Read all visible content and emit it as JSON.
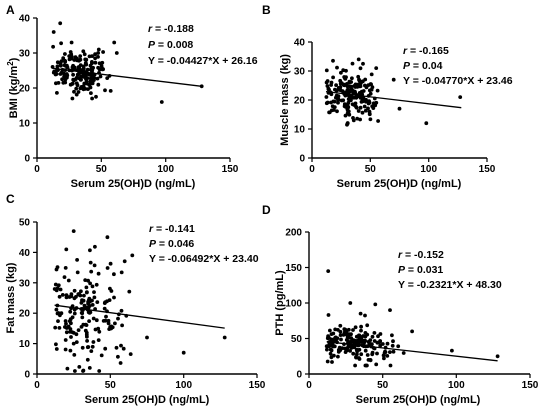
{
  "chart_data": [
    {
      "panel": "A",
      "type": "scatter",
      "xlabel": "Serum 25(OH)D (ng/mL)",
      "ylabel": "BMI (kg/m",
      "ylabel_superscript": "2",
      "ylabel_suffix": ")",
      "xlim": [
        0,
        150
      ],
      "ylim": [
        0,
        40
      ],
      "xticks": [
        0,
        50,
        100,
        150
      ],
      "yticks": [
        0,
        10,
        20,
        30,
        40
      ],
      "stats": {
        "r_label": "r",
        "r": " = -0.188",
        "p_label": "P",
        "p": " = 0.008",
        "eq": "Y = -0.04427*X + 26.16"
      },
      "regression": {
        "slope": -0.04427,
        "intercept": 26.16,
        "x_range": [
          12,
          128
        ]
      },
      "grid": false,
      "legend": "none",
      "seed": 101,
      "cloud": {
        "n": 180,
        "x_mean": 32,
        "x_sd": 11,
        "x_min": 12,
        "x_max": 78,
        "y_sd": 3.4,
        "y_min": 17,
        "y_max": 33
      },
      "extra_points": [
        [
          13,
          36
        ],
        [
          18,
          38.5
        ],
        [
          48,
          31
        ],
        [
          60,
          33
        ],
        [
          97,
          16
        ],
        [
          128,
          20.5
        ],
        [
          36,
          30.5
        ],
        [
          62,
          30
        ]
      ]
    },
    {
      "panel": "B",
      "type": "scatter",
      "xlabel": "Serum 25(OH)D (ng/mL)",
      "ylabel": "Muscle mass (kg)",
      "xlim": [
        0,
        150
      ],
      "ylim": [
        0,
        40
      ],
      "xticks": [
        0,
        50,
        100,
        150
      ],
      "yticks": [
        0,
        10,
        20,
        30,
        40
      ],
      "stats": {
        "r_label": "r",
        "r": " = -0.165",
        "p_label": "P",
        "p": " = 0.04",
        "eq": "Y = -0.04770*X + 23.46"
      },
      "regression": {
        "slope": -0.0477,
        "intercept": 23.46,
        "x_range": [
          12,
          128
        ]
      },
      "grid": false,
      "legend": "none",
      "seed": 202,
      "cloud": {
        "n": 185,
        "x_mean": 33,
        "x_sd": 12,
        "x_min": 12,
        "x_max": 78,
        "y_sd": 4.6,
        "y_min": 12,
        "y_max": 34
      },
      "extra_points": [
        [
          18,
          33.5
        ],
        [
          40,
          34
        ],
        [
          70,
          27
        ],
        [
          98,
          12
        ],
        [
          127,
          21
        ],
        [
          55,
          31
        ],
        [
          75,
          17
        ],
        [
          30,
          11.5
        ]
      ]
    },
    {
      "panel": "C",
      "type": "scatter",
      "xlabel": "Serum 25(OH)D (ng/mL)",
      "ylabel": "Fat mass (kg)",
      "xlim": [
        0,
        150
      ],
      "ylim": [
        0,
        50
      ],
      "xticks": [
        0,
        50,
        100,
        150
      ],
      "yticks": [
        0,
        10,
        20,
        30,
        40,
        50
      ],
      "stats": {
        "r_label": "r",
        "r": " = -0.141",
        "p_label": "P",
        "p": " = 0.046",
        "eq": "Y = -0.06492*X + 23.40"
      },
      "regression": {
        "slope": -0.06492,
        "intercept": 23.4,
        "x_range": [
          12,
          128
        ]
      },
      "grid": false,
      "legend": "none",
      "seed": 303,
      "cloud": {
        "n": 180,
        "x_mean": 33,
        "x_sd": 13,
        "x_min": 12,
        "x_max": 78,
        "y_sd": 8.5,
        "y_min": 1,
        "y_max": 45
      },
      "extra_points": [
        [
          25,
          47
        ],
        [
          48,
          45
        ],
        [
          65,
          39
        ],
        [
          100,
          7
        ],
        [
          128,
          12
        ],
        [
          20,
          41
        ],
        [
          36,
          2
        ],
        [
          75,
          12
        ],
        [
          58,
          16
        ]
      ]
    },
    {
      "panel": "D",
      "type": "scatter",
      "xlabel": "Serum 25(OH)D (ng/mL)",
      "ylabel": "PTH (pg/mL)",
      "xlim": [
        0,
        150
      ],
      "ylim": [
        0,
        200
      ],
      "xticks": [
        0,
        50,
        100,
        150
      ],
      "yticks": [
        0,
        50,
        100,
        150,
        200
      ],
      "stats": {
        "r_label": "r",
        "r": " = -0.152",
        "p_label": "P",
        "p": " = 0.031",
        "eq": "Y = -0.2321*X + 48.30"
      },
      "regression": {
        "slope": -0.2321,
        "intercept": 48.3,
        "x_range": [
          12,
          128
        ]
      },
      "grid": false,
      "legend": "none",
      "seed": 404,
      "cloud": {
        "n": 185,
        "x_mean": 33,
        "x_sd": 12,
        "x_min": 12,
        "x_max": 78,
        "y_sd": 14,
        "y_min": 12,
        "y_max": 95
      },
      "extra_points": [
        [
          13,
          145
        ],
        [
          28,
          100
        ],
        [
          45,
          98
        ],
        [
          55,
          90
        ],
        [
          97,
          33
        ],
        [
          128,
          25
        ],
        [
          35,
          85
        ],
        [
          70,
          60
        ]
      ]
    }
  ]
}
